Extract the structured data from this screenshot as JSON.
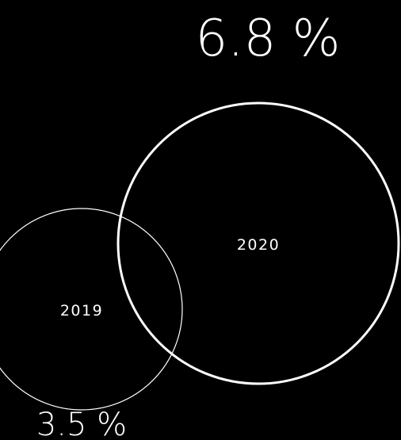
{
  "chart_data": {
    "type": "bubble",
    "series": [
      {
        "category": "2019",
        "value": 3.5,
        "value_label": "3.5 %"
      },
      {
        "category": "2020",
        "value": 6.8,
        "value_label": "6.8 %"
      }
    ],
    "colors": {
      "background": "#000000",
      "stroke": "#ffffff",
      "text": "#ffffff"
    }
  }
}
